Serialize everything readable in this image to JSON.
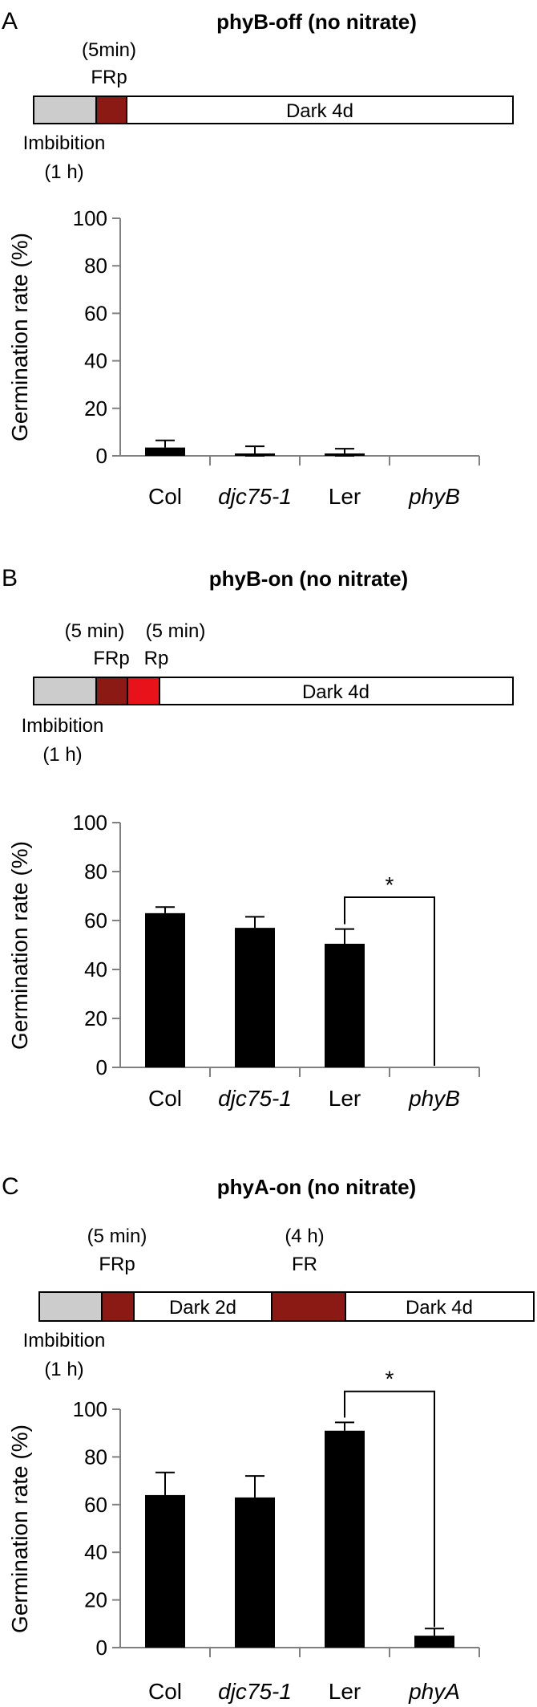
{
  "colors": {
    "light_gray": "#cccccc",
    "far_red": "#8b1a14",
    "red": "#e8121b",
    "bar": "#000000"
  },
  "panels": [
    {
      "letter": "A",
      "title": "phyB-off (no nitrate)",
      "treatment": [
        {
          "key": "imb",
          "text": "",
          "color": "#cccccc"
        },
        {
          "key": "frp",
          "text": "",
          "color": "#8b1a14"
        },
        {
          "key": "dark",
          "text": "Dark 4d",
          "color": "#ffffff"
        }
      ],
      "above_labels": [
        {
          "key": "frp",
          "lines": [
            "(5min)",
            "FRp"
          ]
        }
      ],
      "below_label": [
        "Imbibition",
        "(1 h)"
      ]
    },
    {
      "letter": "B",
      "title": "phyB-on (no nitrate)",
      "treatment": [
        {
          "key": "imb",
          "text": "",
          "color": "#cccccc"
        },
        {
          "key": "frp",
          "text": "",
          "color": "#8b1a14"
        },
        {
          "key": "rp",
          "text": "",
          "color": "#e8121b"
        },
        {
          "key": "dark",
          "text": "Dark 4d",
          "color": "#ffffff"
        }
      ],
      "above_labels": [
        {
          "key": "frp",
          "lines": [
            "(5 min)",
            "FRp"
          ]
        },
        {
          "key": "rp",
          "lines": [
            "(5 min)",
            "Rp"
          ]
        }
      ],
      "below_label": [
        "Imbibition",
        "(1 h)"
      ]
    },
    {
      "letter": "C",
      "title": "phyA-on (no nitrate)",
      "treatment": [
        {
          "key": "imb",
          "text": "",
          "color": "#cccccc"
        },
        {
          "key": "frp",
          "text": "",
          "color": "#8b1a14"
        },
        {
          "key": "dark2",
          "text": "Dark 2d",
          "color": "#ffffff"
        },
        {
          "key": "fr",
          "text": "",
          "color": "#8b1a14"
        },
        {
          "key": "dark4",
          "text": "Dark  4d",
          "color": "#ffffff"
        }
      ],
      "above_labels": [
        {
          "key": "frp",
          "lines": [
            "(5 min)",
            "FRp"
          ]
        },
        {
          "key": "fr",
          "lines": [
            "(4 h)",
            "FR"
          ]
        }
      ],
      "below_label": [
        "Imbibition",
        "(1 h)"
      ]
    }
  ],
  "chart_data": [
    {
      "type": "bar",
      "ylabel": "Germination rate (%)",
      "ylim": [
        0,
        100
      ],
      "yticks": [
        0,
        20,
        40,
        60,
        80,
        100
      ],
      "categories": [
        "Col",
        "djc75-1",
        "Ler",
        "phyB"
      ],
      "italic_categories": [
        "djc75-1",
        "phyB"
      ],
      "values": [
        3.5,
        1,
        1,
        0
      ],
      "errors": [
        3,
        3,
        2,
        0
      ],
      "significance": []
    },
    {
      "type": "bar",
      "ylabel": "Germination rate (%)",
      "ylim": [
        0,
        100
      ],
      "yticks": [
        0,
        20,
        40,
        60,
        80,
        100
      ],
      "categories": [
        "Col",
        "djc75-1",
        "Ler",
        "phyB"
      ],
      "italic_categories": [
        "djc75-1",
        "phyB"
      ],
      "values": [
        63,
        57,
        50.5,
        0
      ],
      "errors": [
        2.5,
        4.5,
        6,
        0
      ],
      "significance": [
        {
          "from": 2,
          "to": 3,
          "label": "*"
        }
      ]
    },
    {
      "type": "bar",
      "ylabel": "Germination rate (%)",
      "ylim": [
        0,
        100
      ],
      "yticks": [
        0,
        20,
        40,
        60,
        80,
        100
      ],
      "categories": [
        "Col",
        "djc75-1",
        "Ler",
        "phyA"
      ],
      "italic_categories": [
        "djc75-1",
        "phyA"
      ],
      "values": [
        64,
        63,
        91,
        5
      ],
      "errors": [
        9.5,
        9,
        3.5,
        3
      ],
      "significance": [
        {
          "from": 2,
          "to": 3,
          "label": "*"
        }
      ]
    }
  ]
}
